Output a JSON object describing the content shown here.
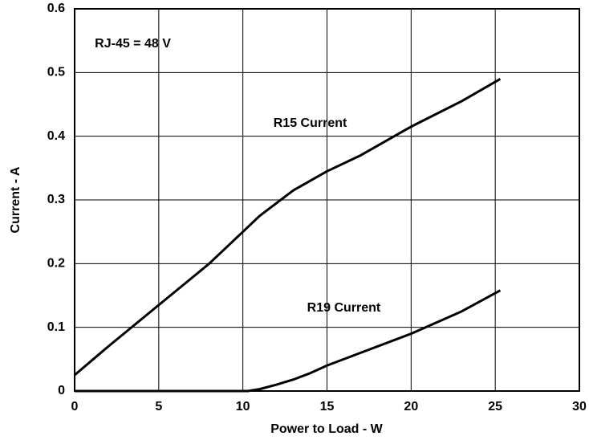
{
  "chart_data": {
    "type": "line",
    "xlabel": "Power to Load - W",
    "ylabel": "Current - A",
    "annotations": [
      "RJ-45 = 48 V"
    ],
    "xlim": [
      0,
      30
    ],
    "xticks": [
      0,
      5,
      10,
      15,
      20,
      25,
      30
    ],
    "ylim": [
      0,
      0.6
    ],
    "yticks": [
      0,
      0.1,
      0.2,
      0.3,
      0.4,
      0.5,
      0.6
    ],
    "grid": true,
    "series": [
      {
        "name": "R15 Current",
        "color": "#000000",
        "x": [
          0,
          2,
          5,
          8,
          10,
          11,
          12,
          13,
          14,
          15,
          17,
          20,
          23,
          25.3
        ],
        "values": [
          0.025,
          0.07,
          0.135,
          0.2,
          0.25,
          0.275,
          0.295,
          0.315,
          0.33,
          0.345,
          0.37,
          0.415,
          0.455,
          0.49
        ]
      },
      {
        "name": "R19 Current",
        "color": "#000000",
        "x": [
          0,
          10.3,
          11,
          12,
          13,
          14,
          15,
          17,
          20,
          23,
          25.3
        ],
        "values": [
          0,
          0,
          0.003,
          0.01,
          0.018,
          0.028,
          0.04,
          0.06,
          0.09,
          0.125,
          0.158
        ]
      }
    ]
  }
}
